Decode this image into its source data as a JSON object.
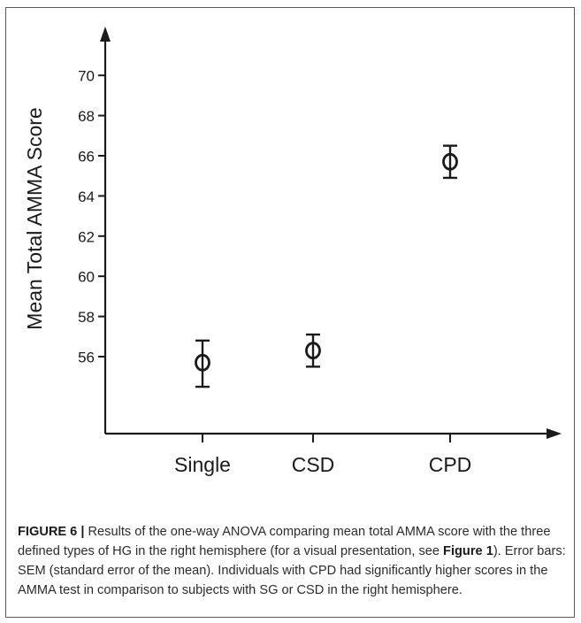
{
  "chart_data": {
    "type": "scatter",
    "categories": [
      "Single",
      "CSD",
      "CPD"
    ],
    "series": [
      {
        "values": [
          55.7,
          56.3,
          65.7
        ],
        "error_low": [
          54.5,
          55.5,
          64.9
        ],
        "error_high": [
          56.8,
          57.1,
          66.5
        ]
      }
    ],
    "ylabel": "Mean Total AMMA Score",
    "xlabel": "",
    "yticks": [
      56,
      58,
      60,
      62,
      64,
      66,
      68,
      70
    ],
    "ylim": [
      52.5,
      71.5
    ],
    "grid": false,
    "marker": "open-circle",
    "error_bars": "SEM"
  },
  "caption": {
    "label": "FIGURE 6 |",
    "text_before_ref": " Results of the one-way ANOVA comparing mean total AMMA score with the three defined types of HG in the right hemisphere (for a visual presentation, see ",
    "ref": "Figure 1",
    "text_after_ref": "). Error bars: SEM (standard error of the mean). Individuals with CPD had significantly higher scores in the AMMA test in comparison to subjects with SG or CSD in the right hemisphere."
  }
}
